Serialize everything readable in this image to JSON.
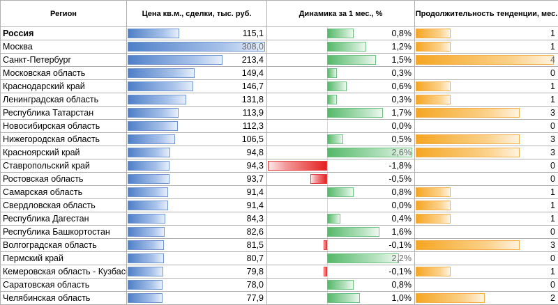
{
  "headers": {
    "region": "Регион",
    "price": "Цена кв.м., сделки, тыс. руб.",
    "dynamics": "Динамика за 1 мес., %",
    "duration": "Продолжительность тенденции, мес."
  },
  "accent_colors": {
    "price_bar": "#4f7fc8",
    "dynamics_positive": "#55b86a",
    "dynamics_negative": "#e52020",
    "duration_bar": "#f5a623"
  },
  "scales": {
    "price_max": 308.0,
    "dyn_max": 2.6,
    "dyn_min": -1.8,
    "dur_max": 4
  },
  "rows": [
    {
      "region": "Россия",
      "price_text": "115,1",
      "price": 115.1,
      "dyn_text": "0,8%",
      "dyn": 0.8,
      "dur_text": "1",
      "dur": 1,
      "bold": true
    },
    {
      "region": "Москва",
      "price_text": "308,0",
      "price": 308.0,
      "dyn_text": "1,2%",
      "dyn": 1.2,
      "dur_text": "1",
      "dur": 1,
      "price_light": true
    },
    {
      "region": "Санкт-Петербург",
      "price_text": "213,4",
      "price": 213.4,
      "dyn_text": "1,5%",
      "dyn": 1.5,
      "dur_text": "4",
      "dur": 4,
      "dur_light": true
    },
    {
      "region": "Московская область",
      "price_text": "149,4",
      "price": 149.4,
      "dyn_text": "0,3%",
      "dyn": 0.3,
      "dur_text": "0",
      "dur": 0
    },
    {
      "region": "Краснодарский край",
      "price_text": "146,7",
      "price": 146.7,
      "dyn_text": "0,6%",
      "dyn": 0.6,
      "dur_text": "1",
      "dur": 1
    },
    {
      "region": "Ленинградская область",
      "price_text": "131,8",
      "price": 131.8,
      "dyn_text": "0,3%",
      "dyn": 0.3,
      "dur_text": "1",
      "dur": 1
    },
    {
      "region": "Республика Татарстан",
      "price_text": "113,9",
      "price": 113.9,
      "dyn_text": "1,7%",
      "dyn": 1.7,
      "dur_text": "3",
      "dur": 3
    },
    {
      "region": "Новосибирская область",
      "price_text": "112,3",
      "price": 112.3,
      "dyn_text": "0,0%",
      "dyn": 0.0,
      "dur_text": "0",
      "dur": 0
    },
    {
      "region": "Нижегородская область",
      "price_text": "106,5",
      "price": 106.5,
      "dyn_text": "0,5%",
      "dyn": 0.5,
      "dur_text": "3",
      "dur": 3
    },
    {
      "region": "Красноярский край",
      "price_text": "94,8",
      "price": 94.8,
      "dyn_text": "2,6%",
      "dyn": 2.6,
      "dur_text": "3",
      "dur": 3,
      "dyn_light": true
    },
    {
      "region": "Ставропольский край",
      "price_text": "94,3",
      "price": 94.3,
      "dyn_text": "-1,8%",
      "dyn": -1.8,
      "dur_text": "0",
      "dur": 0
    },
    {
      "region": "Ростовская область",
      "price_text": "93,7",
      "price": 93.7,
      "dyn_text": "-0,5%",
      "dyn": -0.5,
      "dur_text": "0",
      "dur": 0
    },
    {
      "region": "Самарская область",
      "price_text": "91,4",
      "price": 91.4,
      "dyn_text": "0,8%",
      "dyn": 0.8,
      "dur_text": "1",
      "dur": 1
    },
    {
      "region": "Свердловская область",
      "price_text": "91,4",
      "price": 91.4,
      "dyn_text": "0,0%",
      "dyn": 0.0,
      "dur_text": "1",
      "dur": 1
    },
    {
      "region": "Республика Дагестан",
      "price_text": "84,3",
      "price": 84.3,
      "dyn_text": "0,4%",
      "dyn": 0.4,
      "dur_text": "1",
      "dur": 1
    },
    {
      "region": "Республика Башкортостан",
      "price_text": "82,6",
      "price": 82.6,
      "dyn_text": "1,6%",
      "dyn": 1.6,
      "dur_text": "0",
      "dur": 0
    },
    {
      "region": "Волгоградская область",
      "price_text": "81,5",
      "price": 81.5,
      "dyn_text": "-0,1%",
      "dyn": -0.1,
      "dur_text": "3",
      "dur": 3
    },
    {
      "region": "Пермский край",
      "price_text": "80,7",
      "price": 80.7,
      "dyn_text": "2,2%",
      "dyn": 2.2,
      "dur_text": "0",
      "dur": 0,
      "dyn_light": true
    },
    {
      "region": "Кемеровская область - Кузбасс",
      "price_text": "79,8",
      "price": 79.8,
      "dyn_text": "-0,1%",
      "dyn": -0.1,
      "dur_text": "1",
      "dur": 1
    },
    {
      "region": "Саратовская область",
      "price_text": "78,0",
      "price": 78.0,
      "dyn_text": "0,8%",
      "dyn": 0.8,
      "dur_text": "0",
      "dur": 0
    },
    {
      "region": "Челябинская область",
      "price_text": "77,9",
      "price": 77.9,
      "dyn_text": "1,0%",
      "dyn": 1.0,
      "dur_text": "2",
      "dur": 2
    }
  ]
}
